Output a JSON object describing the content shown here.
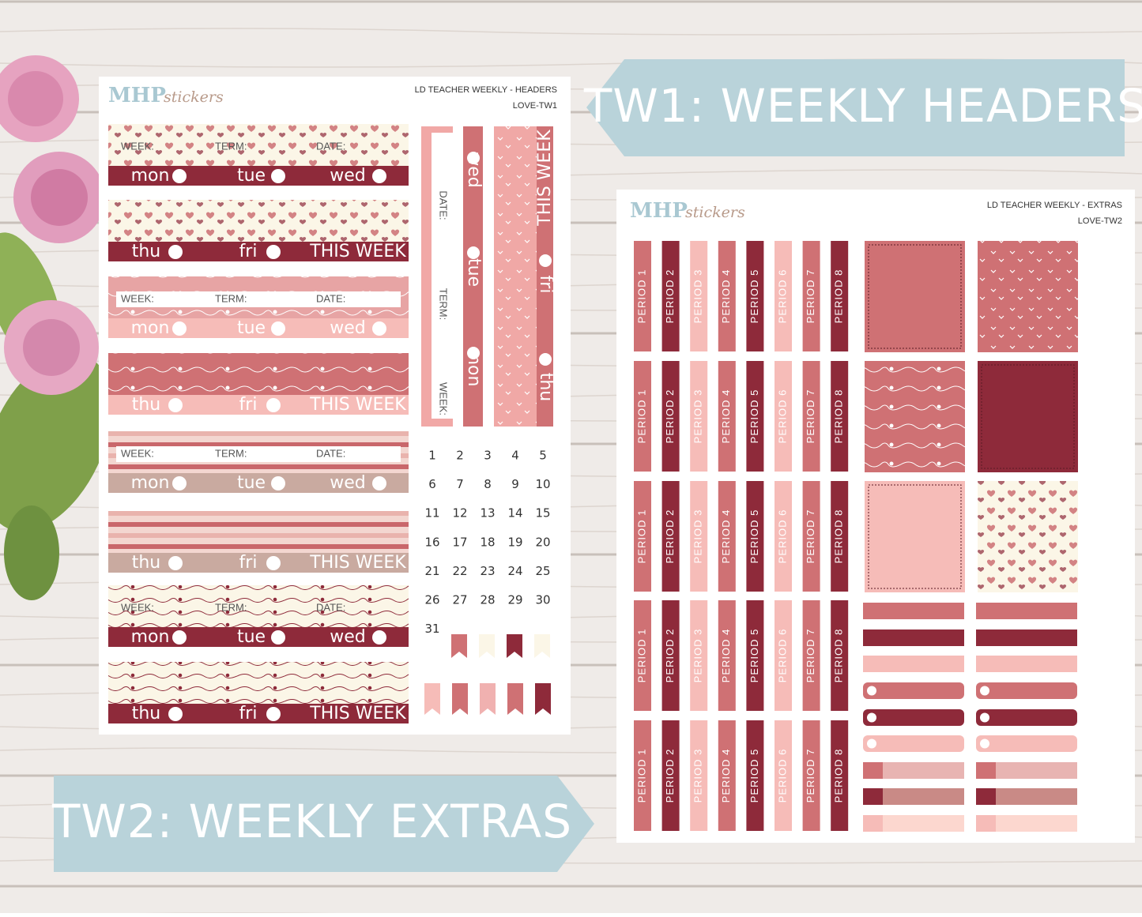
{
  "banners": {
    "headers": "TW1: WEEKLY HEADERS",
    "extras": "TW2: WEEKLY EXTRAS"
  },
  "brand": {
    "mark": "MHP",
    "word": "stickers"
  },
  "sheet1": {
    "title": "LD TEACHER WEEKLY - HEADERS",
    "code": "LOVE-TW1",
    "fields": [
      "WEEK:",
      "TERM:",
      "DATE:"
    ],
    "days": [
      "mon",
      "tue",
      "wed",
      "thu",
      "fri"
    ],
    "this_week": "THIS WEEK",
    "calendar": [
      1,
      2,
      3,
      4,
      5,
      6,
      7,
      8,
      9,
      10,
      11,
      12,
      13,
      14,
      15,
      16,
      17,
      18,
      19,
      20,
      21,
      22,
      23,
      24,
      25,
      26,
      27,
      28,
      29,
      30,
      31
    ]
  },
  "sheet2": {
    "title": "LD TEACHER WEEKLY - EXTRAS",
    "code": "LOVE-TW2",
    "periods": [
      "PERIOD 1",
      "PERIOD 2",
      "PERIOD 3",
      "PERIOD 4",
      "PERIOD 5",
      "PERIOD 6",
      "PERIOD 7",
      "PERIOD 8"
    ]
  }
}
